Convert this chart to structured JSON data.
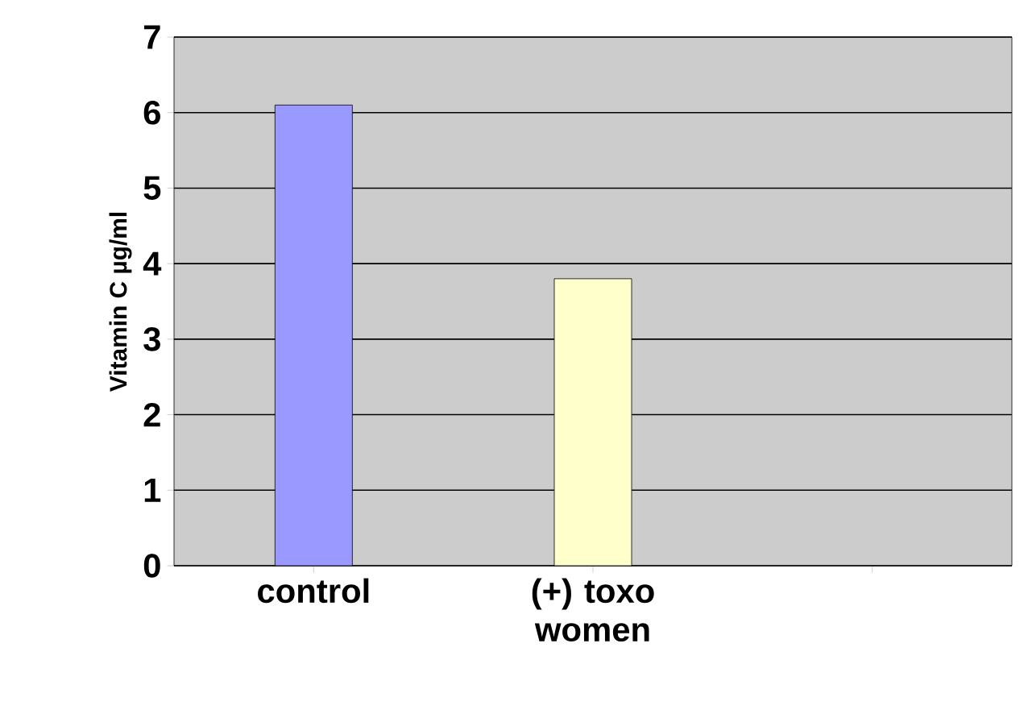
{
  "chart_data": {
    "type": "bar",
    "ylabel": "Vitamin C µg/ml",
    "categories": [
      "control",
      "(+) toxo women",
      null
    ],
    "values": [
      6.1,
      3.8,
      null
    ],
    "colors": [
      "#9999ff",
      "#ffffcc",
      "#ffffcc"
    ],
    "ylim": [
      0,
      7
    ],
    "yticks": [
      0,
      1,
      2,
      3,
      4,
      5,
      6,
      7
    ],
    "grid": "y"
  }
}
